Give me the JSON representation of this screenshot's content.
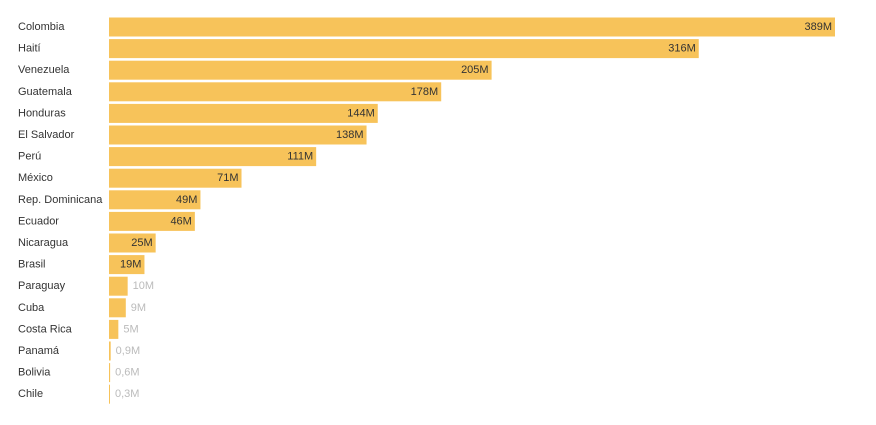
{
  "chart_data": {
    "type": "bar",
    "orientation": "horizontal",
    "categories": [
      "Colombia",
      "Haití",
      "Venezuela",
      "Guatemala",
      "Honduras",
      "El Salvador",
      "Perú",
      "México",
      "Rep. Dominicana",
      "Ecuador",
      "Nicaragua",
      "Brasil",
      "Paraguay",
      "Cuba",
      "Costa Rica",
      "Panamá",
      "Bolivia",
      "Chile"
    ],
    "values": [
      389,
      316,
      205,
      178,
      144,
      138,
      111,
      71,
      49,
      46,
      25,
      19,
      10,
      9,
      5,
      0.9,
      0.6,
      0.3
    ],
    "labels": [
      "389M",
      "316M",
      "205M",
      "178M",
      "144M",
      "138M",
      "111M",
      "71M",
      "49M",
      "46M",
      "25M",
      "19M",
      "10M",
      "9M",
      "5M",
      "0,9M",
      "0,6M",
      "0,3M"
    ],
    "bar_color": "#f7c35a",
    "label_color_inside": "#333333",
    "label_color_outside": "#bbbbbb",
    "xlim": [
      0,
      389
    ],
    "grid": false,
    "legend": "none"
  }
}
